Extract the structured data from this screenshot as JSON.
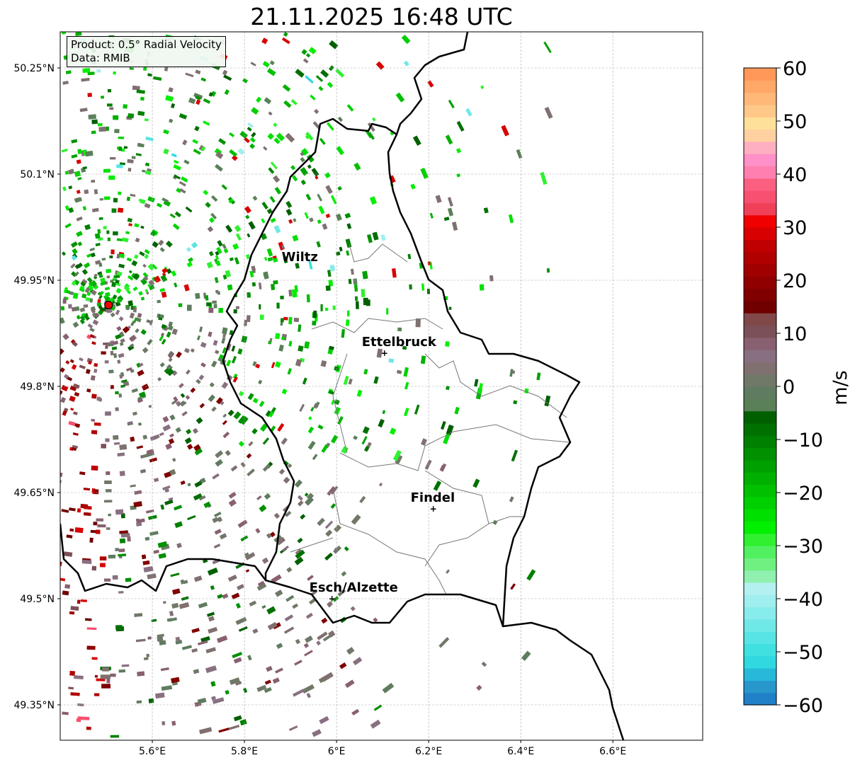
{
  "title": "21.11.2025 16:48 UTC",
  "info": {
    "product": "Product: 0.5° Radial Velocity",
    "data": "Data: RMIB"
  },
  "map": {
    "lon_range": [
      5.4,
      6.795
    ],
    "lat_range": [
      49.3,
      50.301
    ],
    "lon_ticks": [
      {
        "v": 5.6,
        "label": "5.6°E"
      },
      {
        "v": 5.8,
        "label": "5.8°E"
      },
      {
        "v": 6.0,
        "label": "6°E"
      },
      {
        "v": 6.2,
        "label": "6.2°E"
      },
      {
        "v": 6.4,
        "label": "6.4°E"
      },
      {
        "v": 6.6,
        "label": "6.6°E"
      }
    ],
    "lat_ticks": [
      {
        "v": 50.25,
        "label": "50.25°N"
      },
      {
        "v": 50.1,
        "label": "50.1°N"
      },
      {
        "v": 49.95,
        "label": "49.95°N"
      },
      {
        "v": 49.8,
        "label": "49.8°N"
      },
      {
        "v": 49.65,
        "label": "49.65°N"
      },
      {
        "v": 49.5,
        "label": "49.5°N"
      },
      {
        "v": 49.35,
        "label": "49.35°N"
      }
    ],
    "cities": [
      {
        "name": "Wiltz",
        "lon": 5.93,
        "lat": 49.967,
        "marker": false
      },
      {
        "name": "Ettelbruck",
        "lon": 6.104,
        "lat": 49.847,
        "marker": true
      },
      {
        "name": "Findel",
        "lon": 6.21,
        "lat": 49.627,
        "marker": true
      },
      {
        "name": "Esch/Alzette",
        "lon": 5.99,
        "lat": 49.5,
        "marker": true
      }
    ],
    "radar_site": {
      "lon": 5.505,
      "lat": 49.915
    }
  },
  "colorbar": {
    "label": "m/s",
    "min": -60,
    "max": 60,
    "ticks": [
      {
        "v": 60,
        "label": "60"
      },
      {
        "v": 50,
        "label": "50"
      },
      {
        "v": 40,
        "label": "40"
      },
      {
        "v": 30,
        "label": "30"
      },
      {
        "v": 20,
        "label": "20"
      },
      {
        "v": 10,
        "label": "10"
      },
      {
        "v": 0,
        "label": "0"
      },
      {
        "v": -10,
        "label": "−10"
      },
      {
        "v": -20,
        "label": "−20"
      },
      {
        "v": -30,
        "label": "−30"
      },
      {
        "v": -40,
        "label": "−40"
      },
      {
        "v": -50,
        "label": "−50"
      },
      {
        "v": -60,
        "label": "−60"
      }
    ],
    "colors": [
      "#2080c8",
      "#2898cc",
      "#28b8d8",
      "#30d8e0",
      "#40e0e0",
      "#58e4e4",
      "#70e8e8",
      "#88ecec",
      "#a0eeee",
      "#b4f0f0",
      "#90f0b0",
      "#70f080",
      "#50f060",
      "#30f030",
      "#00f000",
      "#00e000",
      "#00d000",
      "#00c000",
      "#00b000",
      "#00a000",
      "#009000",
      "#008000",
      "#007000",
      "#006000",
      "#5a8058",
      "#607c60",
      "#707868",
      "#807070",
      "#887080",
      "#886070",
      "#7c5058",
      "#804848",
      "#700000",
      "#800000",
      "#900000",
      "#a00000",
      "#b00000",
      "#c00000",
      "#d80000",
      "#f00000",
      "#f04058",
      "#f85070",
      "#fc6080",
      "#ff80b0",
      "#ff90c8",
      "#ffb0c0",
      "#ffd0a0",
      "#ffe098",
      "#ffc888",
      "#ffb878",
      "#ffa868",
      "#ff9858"
    ]
  }
}
